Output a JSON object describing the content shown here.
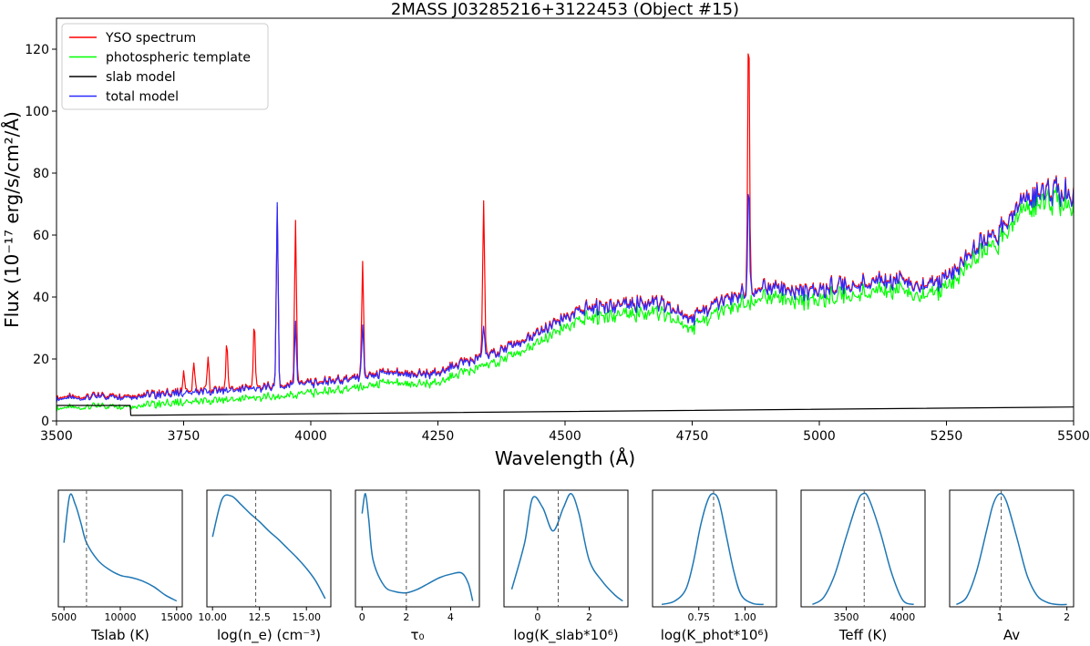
{
  "chart_data": [
    {
      "type": "line",
      "title": "2MASS J03285216+3122453 (Object #15)",
      "xlabel": "Wavelength (Å)",
      "ylabel": "Flux (10⁻¹⁷ erg/s/cm²/Å)",
      "xlim": [
        3500,
        5500
      ],
      "ylim": [
        0,
        130
      ],
      "xticks": [
        3500,
        3750,
        4000,
        4250,
        4500,
        4750,
        5000,
        5250,
        5500
      ],
      "yticks": [
        0,
        20,
        40,
        60,
        80,
        100,
        120
      ],
      "legend_position": "top-left",
      "grid": false,
      "continuum": {
        "x": [
          3500,
          3550,
          3600,
          3650,
          3700,
          3750,
          3800,
          3850,
          3900,
          3950,
          4000,
          4050,
          4100,
          4150,
          4200,
          4250,
          4300,
          4350,
          4400,
          4450,
          4500,
          4550,
          4600,
          4650,
          4700,
          4750,
          4800,
          4850,
          4900,
          4950,
          5000,
          5050,
          5100,
          5150,
          5200,
          5250,
          5300,
          5350,
          5400,
          5450,
          5500
        ],
        "values": [
          7,
          7.5,
          8,
          8,
          8.5,
          9,
          9.5,
          10,
          10.5,
          11,
          12,
          13,
          14,
          15,
          15,
          15,
          19,
          21,
          24,
          28,
          33,
          37,
          37,
          38,
          37,
          33,
          38,
          41,
          43,
          42,
          42,
          44,
          44,
          46,
          43,
          46,
          55,
          60,
          70,
          75,
          72
        ]
      },
      "series": [
        {
          "name": "YSO spectrum",
          "color": "#ff0000",
          "offset": 0.5,
          "lines": [
            {
              "x": 3750,
              "amp": 7
            },
            {
              "x": 3770,
              "amp": 9
            },
            {
              "x": 3798,
              "amp": 11
            },
            {
              "x": 3835,
              "amp": 15
            },
            {
              "x": 3889,
              "amp": 21
            },
            {
              "x": 3934,
              "amp": 58
            },
            {
              "x": 3970,
              "amp": 53
            },
            {
              "x": 4102,
              "amp": 38
            },
            {
              "x": 4340,
              "amp": 50
            },
            {
              "x": 4861,
              "amp": 88
            }
          ]
        },
        {
          "name": "photospheric template",
          "color": "#00ff00",
          "offset": -3,
          "lines": [
            {
              "x": 3934,
              "amp": 0
            }
          ]
        },
        {
          "name": "slab model",
          "color": "#000000",
          "slab": {
            "x": [
              3500,
              3645,
              3646,
              5500
            ],
            "values": [
              5,
              5,
              1.8,
              4.5
            ]
          }
        },
        {
          "name": "total model",
          "color": "#2a2aff",
          "offset": 0,
          "lines": [
            {
              "x": 3934,
              "amp": 60
            },
            {
              "x": 3970,
              "amp": 21
            },
            {
              "x": 4102,
              "amp": 18
            },
            {
              "x": 4340,
              "amp": 10
            },
            {
              "x": 4861,
              "amp": 36
            }
          ]
        }
      ]
    },
    {
      "type": "line",
      "xlabel": "Tslab (K)",
      "xlim": [
        4500,
        15500
      ],
      "xticks": [
        5000,
        10000,
        15000
      ],
      "x": [
        5000,
        5500,
        6000,
        6500,
        7000,
        8000,
        9000,
        10000,
        11000,
        12000,
        13000,
        14000,
        15000
      ],
      "values": [
        0.55,
        0.95,
        0.88,
        0.72,
        0.55,
        0.4,
        0.32,
        0.27,
        0.25,
        0.22,
        0.17,
        0.1,
        0.05
      ],
      "median": 7000
    },
    {
      "type": "line",
      "xlabel": "log(n_e) (cm⁻³)",
      "xlim": [
        9.7,
        16.3
      ],
      "xticks": [
        10.0,
        12.5,
        15.0
      ],
      "x": [
        10,
        10.5,
        11,
        11.5,
        12,
        12.5,
        13,
        13.5,
        14,
        14.5,
        15,
        15.5,
        16
      ],
      "values": [
        0.6,
        0.92,
        0.95,
        0.88,
        0.8,
        0.73,
        0.65,
        0.58,
        0.5,
        0.42,
        0.33,
        0.22,
        0.07
      ],
      "median": 12.3
    },
    {
      "type": "line",
      "xlabel": "τ₀",
      "xlim": [
        -0.3,
        5.3
      ],
      "xticks": [
        0,
        2,
        4
      ],
      "x": [
        0,
        0.15,
        0.3,
        0.5,
        1,
        1.5,
        2,
        2.5,
        3,
        3.5,
        4,
        4.5,
        4.8,
        5
      ],
      "values": [
        0.8,
        0.97,
        0.75,
        0.4,
        0.18,
        0.13,
        0.12,
        0.15,
        0.2,
        0.25,
        0.28,
        0.29,
        0.2,
        0.05
      ],
      "median": 2
    },
    {
      "type": "line",
      "xlabel": "log(K_slab*10⁶)",
      "xlim": [
        -1.3,
        3.5
      ],
      "xticks": [
        0,
        2
      ],
      "x": [
        -1,
        -0.5,
        -0.2,
        0.2,
        0.6,
        1.0,
        1.3,
        1.6,
        2,
        2.5,
        3,
        3.3
      ],
      "values": [
        0.15,
        0.55,
        0.93,
        0.85,
        0.65,
        0.85,
        0.97,
        0.8,
        0.4,
        0.22,
        0.1,
        0.05
      ],
      "median": 0.8
    },
    {
      "type": "line",
      "xlabel": "log(K_phot*10⁶)",
      "xlim": [
        0.5,
        1.17
      ],
      "xticks": [
        0.75,
        1.0
      ],
      "x": [
        0.55,
        0.62,
        0.68,
        0.72,
        0.76,
        0.8,
        0.83,
        0.86,
        0.9,
        0.94,
        0.98,
        1.04,
        1.1
      ],
      "values": [
        0.02,
        0.05,
        0.15,
        0.38,
        0.7,
        0.92,
        0.97,
        0.9,
        0.6,
        0.3,
        0.1,
        0.03,
        0.02
      ],
      "median": 0.83
    },
    {
      "type": "line",
      "xlabel": "Teff (K)",
      "xlim": [
        3100,
        4200
      ],
      "xticks": [
        3500,
        4000
      ],
      "x": [
        3200,
        3300,
        3400,
        3500,
        3600,
        3650,
        3700,
        3800,
        3900,
        4000,
        4100
      ],
      "values": [
        0.02,
        0.08,
        0.28,
        0.6,
        0.9,
        0.97,
        0.93,
        0.65,
        0.3,
        0.06,
        0.02
      ],
      "median": 3660
    },
    {
      "type": "line",
      "xlabel": "Av",
      "xlim": [
        0.25,
        2.1
      ],
      "xticks": [
        1,
        2
      ],
      "x": [
        0.35,
        0.5,
        0.65,
        0.8,
        0.9,
        1.0,
        1.1,
        1.25,
        1.4,
        1.55,
        1.7,
        1.85,
        2.0
      ],
      "values": [
        0.02,
        0.08,
        0.3,
        0.65,
        0.88,
        0.97,
        0.9,
        0.6,
        0.28,
        0.1,
        0.04,
        0.02,
        0.02
      ],
      "median": 1.02
    }
  ]
}
